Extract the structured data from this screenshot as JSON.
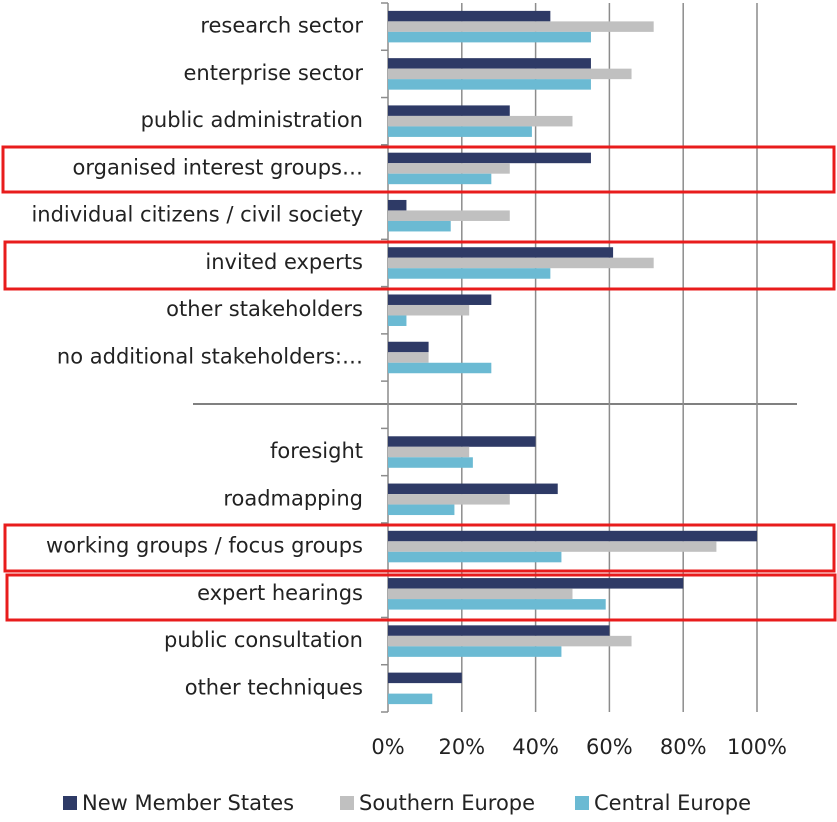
{
  "chart_data": {
    "type": "hbar",
    "categories": [
      "research sector",
      "enterprise sector",
      "public administration",
      "organised interest groups…",
      "individual citizens / civil society",
      "invited experts",
      "other stakeholders",
      "no additional stakeholders:…",
      null,
      "foresight",
      "roadmapping",
      "working groups / focus groups",
      "expert hearings",
      "public consultation",
      "other techniques"
    ],
    "series": [
      {
        "name": "New Member States",
        "color": "#2e3a66",
        "values": [
          44,
          55,
          33,
          55,
          5,
          61,
          28,
          11,
          null,
          40,
          46,
          100,
          80,
          60,
          20
        ]
      },
      {
        "name": "Southern Europe",
        "color": "#c0c0c0",
        "values": [
          72,
          66,
          50,
          33,
          33,
          72,
          22,
          11,
          null,
          22,
          33,
          89,
          50,
          66,
          0
        ]
      },
      {
        "name": "Central Europe",
        "color": "#6bbad3",
        "values": [
          55,
          55,
          39,
          28,
          17,
          44,
          5,
          28,
          null,
          23,
          18,
          47,
          59,
          47,
          12
        ]
      }
    ],
    "xlim": [
      0,
      100
    ],
    "xticks": [
      {
        "value": 0,
        "label": "0%"
      },
      {
        "value": 20,
        "label": "20%"
      },
      {
        "value": 40,
        "label": "40%"
      },
      {
        "value": 60,
        "label": "60%"
      },
      {
        "value": 80,
        "label": "80%"
      },
      {
        "value": 100,
        "label": "100%"
      }
    ],
    "grid": true,
    "legend": "bottom"
  }
}
